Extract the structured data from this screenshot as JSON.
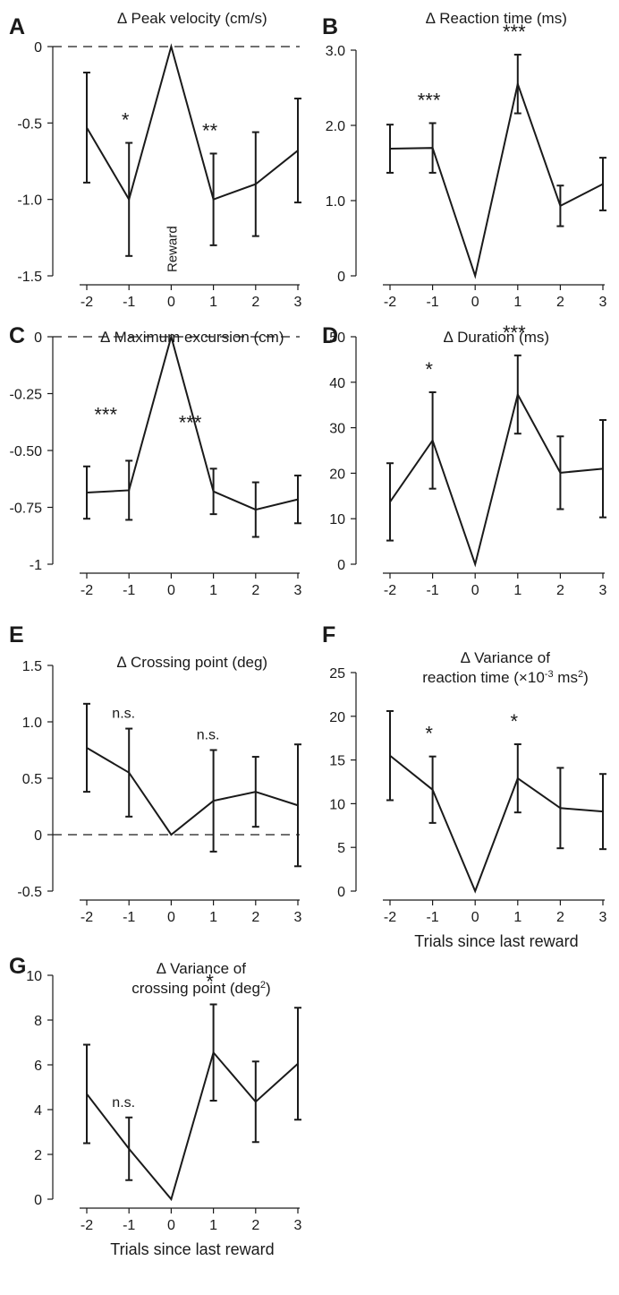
{
  "figure": {
    "x_axis_label": "Trials since last reward"
  },
  "chart_data": [
    {
      "panel": "A",
      "type": "line",
      "title": "∆ Peak velocity (cm/s)",
      "x": [
        -2,
        -1,
        0,
        1,
        2,
        3
      ],
      "y": [
        -0.53,
        -1.0,
        0.0,
        -1.0,
        -0.9,
        -0.68
      ],
      "err": [
        0.36,
        0.37,
        0,
        0.3,
        0.34,
        0.34
      ],
      "ylim": [
        -1.5,
        0
      ],
      "yticks": [
        0,
        -0.5,
        -1.0,
        -1.5
      ],
      "ytick_labels": [
        "0",
        "-0.5",
        "-1.0",
        "-1.5"
      ],
      "xticks": [
        -2,
        -1,
        0,
        1,
        2,
        3
      ],
      "xtick_labels": [
        "-2",
        "-1",
        "0",
        "1",
        "2",
        "3"
      ],
      "dashed_zero": true,
      "significance": [
        {
          "x": -1,
          "label": "*"
        },
        {
          "x": 1,
          "label": "**"
        }
      ],
      "annotation": {
        "x": 0,
        "text": "Reward"
      },
      "xlabel": ""
    },
    {
      "panel": "B",
      "type": "line",
      "title": "∆ Reaction time (ms)",
      "x": [
        -2,
        -1,
        0,
        1,
        2,
        3
      ],
      "y": [
        1.69,
        1.7,
        0.0,
        2.55,
        0.93,
        1.22
      ],
      "err": [
        0.32,
        0.33,
        0,
        0.39,
        0.27,
        0.35
      ],
      "ylim": [
        0,
        3.0
      ],
      "yticks": [
        0,
        1.0,
        2.0,
        3.0
      ],
      "ytick_labels": [
        "0",
        "1.0",
        "2.0",
        "3.0"
      ],
      "xticks": [
        -2,
        -1,
        0,
        1,
        2,
        3
      ],
      "xtick_labels": [
        "-2",
        "-1",
        "0",
        "1",
        "2",
        "3"
      ],
      "dashed_zero": false,
      "significance": [
        {
          "x": -1,
          "label": "***"
        },
        {
          "x": 1,
          "label": "***"
        }
      ],
      "xlabel": ""
    },
    {
      "panel": "C",
      "type": "line",
      "title": "∆ Maximum excursion (cm)",
      "x": [
        -2,
        -1,
        0,
        1,
        2,
        3
      ],
      "y": [
        -0.685,
        -0.675,
        0.0,
        -0.68,
        -0.76,
        -0.715
      ],
      "err": [
        0.115,
        0.13,
        0,
        0.1,
        0.12,
        0.105
      ],
      "ylim": [
        -1,
        0
      ],
      "yticks": [
        0,
        -0.25,
        -0.5,
        -0.75,
        -1
      ],
      "ytick_labels": [
        "0",
        "-0.25",
        "-0.50",
        "-0.75",
        "-1"
      ],
      "xticks": [
        -2,
        -1,
        0,
        1,
        2,
        3
      ],
      "xtick_labels": [
        "-2",
        "-1",
        "0",
        "1",
        "2",
        "3"
      ],
      "dashed_zero": true,
      "significance": [
        {
          "x": -1,
          "label": "***"
        },
        {
          "x": 1,
          "label": "***"
        }
      ],
      "xlabel": ""
    },
    {
      "panel": "D",
      "type": "line",
      "title": "∆ Duration (ms)",
      "x": [
        -2,
        -1,
        0,
        1,
        2,
        3
      ],
      "y": [
        13.7,
        27.2,
        0.0,
        37.3,
        20.1,
        21.0
      ],
      "err": [
        8.5,
        10.6,
        0,
        8.6,
        8.0,
        10.7
      ],
      "ylim": [
        0,
        50
      ],
      "yticks": [
        0,
        10,
        20,
        30,
        40,
        50
      ],
      "ytick_labels": [
        "0",
        "10",
        "20",
        "30",
        "40",
        "50"
      ],
      "xticks": [
        -2,
        -1,
        0,
        1,
        2,
        3
      ],
      "xtick_labels": [
        "-2",
        "-1",
        "0",
        "1",
        "2",
        "3"
      ],
      "dashed_zero": false,
      "significance": [
        {
          "x": -1,
          "label": "*"
        },
        {
          "x": 1,
          "label": "***"
        }
      ],
      "xlabel": ""
    },
    {
      "panel": "E",
      "type": "line",
      "title": "∆ Crossing point (deg)",
      "x": [
        -2,
        -1,
        0,
        1,
        2,
        3
      ],
      "y": [
        0.77,
        0.55,
        0.0,
        0.3,
        0.38,
        0.26
      ],
      "err": [
        0.39,
        0.39,
        0,
        0.45,
        0.31,
        0.54
      ],
      "ylim": [
        -0.5,
        1.5
      ],
      "yticks": [
        -0.5,
        0,
        0.5,
        1.0,
        1.5
      ],
      "ytick_labels": [
        "-0.5",
        "0",
        "0.5",
        "1.0",
        "1.5"
      ],
      "xticks": [
        -2,
        -1,
        0,
        1,
        2,
        3
      ],
      "xtick_labels": [
        "-2",
        "-1",
        "0",
        "1",
        "2",
        "3"
      ],
      "dashed_zero": true,
      "significance": [
        {
          "x": -1,
          "label": "n.s."
        },
        {
          "x": 1,
          "label": "n.s."
        }
      ],
      "xlabel": ""
    },
    {
      "panel": "F",
      "type": "line",
      "title_line1": "∆ Variance of",
      "title_line2_pre": "reaction time (×10",
      "title_line2_sup1": "-3",
      "title_line2_mid": " ms",
      "title_line2_sup2": "2",
      "title_line2_post": ")",
      "x": [
        -2,
        -1,
        0,
        1,
        2,
        3
      ],
      "y": [
        15.5,
        11.6,
        0.0,
        12.9,
        9.5,
        9.1
      ],
      "err": [
        5.1,
        3.8,
        0,
        3.9,
        4.6,
        4.3
      ],
      "ylim": [
        0,
        25
      ],
      "yticks": [
        0,
        5,
        10,
        15,
        20,
        25
      ],
      "ytick_labels": [
        "0",
        "5",
        "10",
        "15",
        "20",
        "25"
      ],
      "xticks": [
        -2,
        -1,
        0,
        1,
        2,
        3
      ],
      "xtick_labels": [
        "-2",
        "-1",
        "0",
        "1",
        "2",
        "3"
      ],
      "dashed_zero": false,
      "significance": [
        {
          "x": -1,
          "label": "*"
        },
        {
          "x": 1,
          "label": "*"
        }
      ],
      "xlabel": "Trials since last reward"
    },
    {
      "panel": "G",
      "type": "line",
      "title_line1": "∆ Variance of",
      "title_line2_pre": "crossing point (deg",
      "title_line2_sup1": "2",
      "title_line2_mid": "",
      "title_line2_sup2": "",
      "title_line2_post": ")",
      "x": [
        -2,
        -1,
        0,
        1,
        2,
        3
      ],
      "y": [
        4.7,
        2.25,
        0.0,
        6.55,
        4.35,
        6.05
      ],
      "err": [
        2.2,
        1.4,
        0,
        2.15,
        1.8,
        2.5
      ],
      "ylim": [
        0,
        10
      ],
      "yticks": [
        0,
        2,
        4,
        6,
        8,
        10
      ],
      "ytick_labels": [
        "0",
        "2",
        "4",
        "6",
        "8",
        "10"
      ],
      "xticks": [
        -2,
        -1,
        0,
        1,
        2,
        3
      ],
      "xtick_labels": [
        "-2",
        "-1",
        "0",
        "1",
        "2",
        "3"
      ],
      "dashed_zero": false,
      "significance": [
        {
          "x": -1,
          "label": "n.s."
        },
        {
          "x": 1,
          "label": "*"
        }
      ],
      "xlabel": "Trials since last reward"
    }
  ]
}
